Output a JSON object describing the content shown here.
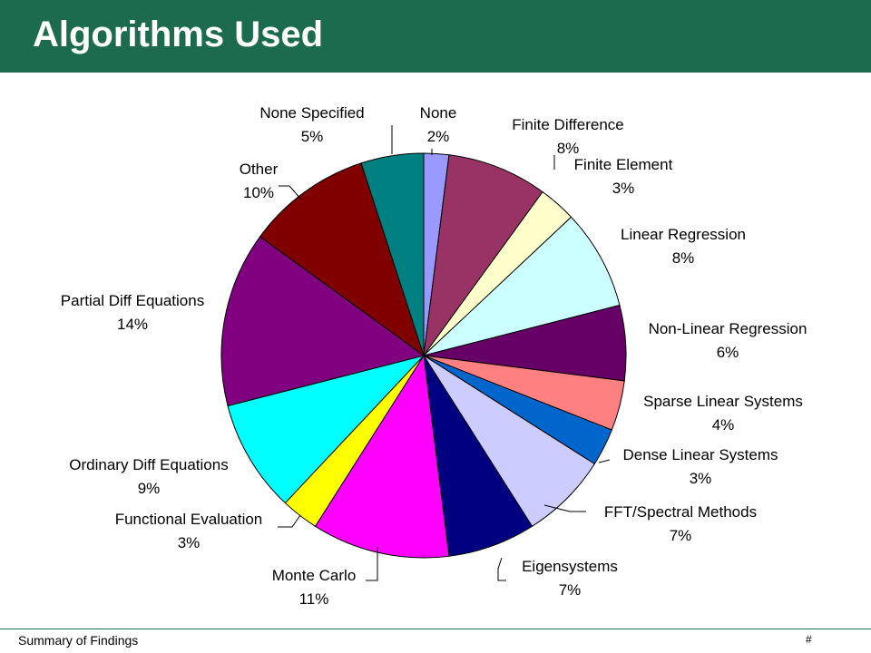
{
  "slide": {
    "title": "Algorithms Used",
    "footer": "Summary of Findings",
    "page_number": "#"
  },
  "chart_data": {
    "type": "pie",
    "title": "",
    "start_angle_deg": 90,
    "direction": "clockwise",
    "slices": [
      {
        "label": "None",
        "value": 2,
        "pct": "2%",
        "color": "#9999ff"
      },
      {
        "label": "Finite Difference",
        "value": 8,
        "pct": "8%",
        "color": "#993366"
      },
      {
        "label": "Finite Element",
        "value": 3,
        "pct": "3%",
        "color": "#ffffcc"
      },
      {
        "label": "Linear Regression",
        "value": 8,
        "pct": "8%",
        "color": "#ccffff"
      },
      {
        "label": "Non-Linear Regression",
        "value": 6,
        "pct": "6%",
        "color": "#660066"
      },
      {
        "label": "Sparse Linear Systems",
        "value": 4,
        "pct": "4%",
        "color": "#ff8080"
      },
      {
        "label": "Dense Linear Systems",
        "value": 3,
        "pct": "3%",
        "color": "#0066cc"
      },
      {
        "label": "FFT/Spectral Methods",
        "value": 7,
        "pct": "7%",
        "color": "#ccccff"
      },
      {
        "label": "Eigensystems",
        "value": 7,
        "pct": "7%",
        "color": "#000080"
      },
      {
        "label": "Monte Carlo",
        "value": 11,
        "pct": "11%",
        "color": "#ff00ff"
      },
      {
        "label": "Functional Evaluation",
        "value": 3,
        "pct": "3%",
        "color": "#ffff00"
      },
      {
        "label": "Ordinary Diff Equations",
        "value": 9,
        "pct": "9%",
        "color": "#00ffff"
      },
      {
        "label": "Partial Diff Equations",
        "value": 14,
        "pct": "14%",
        "color": "#800080"
      },
      {
        "label": "Other",
        "value": 10,
        "pct": "10%",
        "color": "#800000"
      },
      {
        "label": "None Specified",
        "value": 5,
        "pct": "5%",
        "color": "#008080"
      }
    ]
  }
}
